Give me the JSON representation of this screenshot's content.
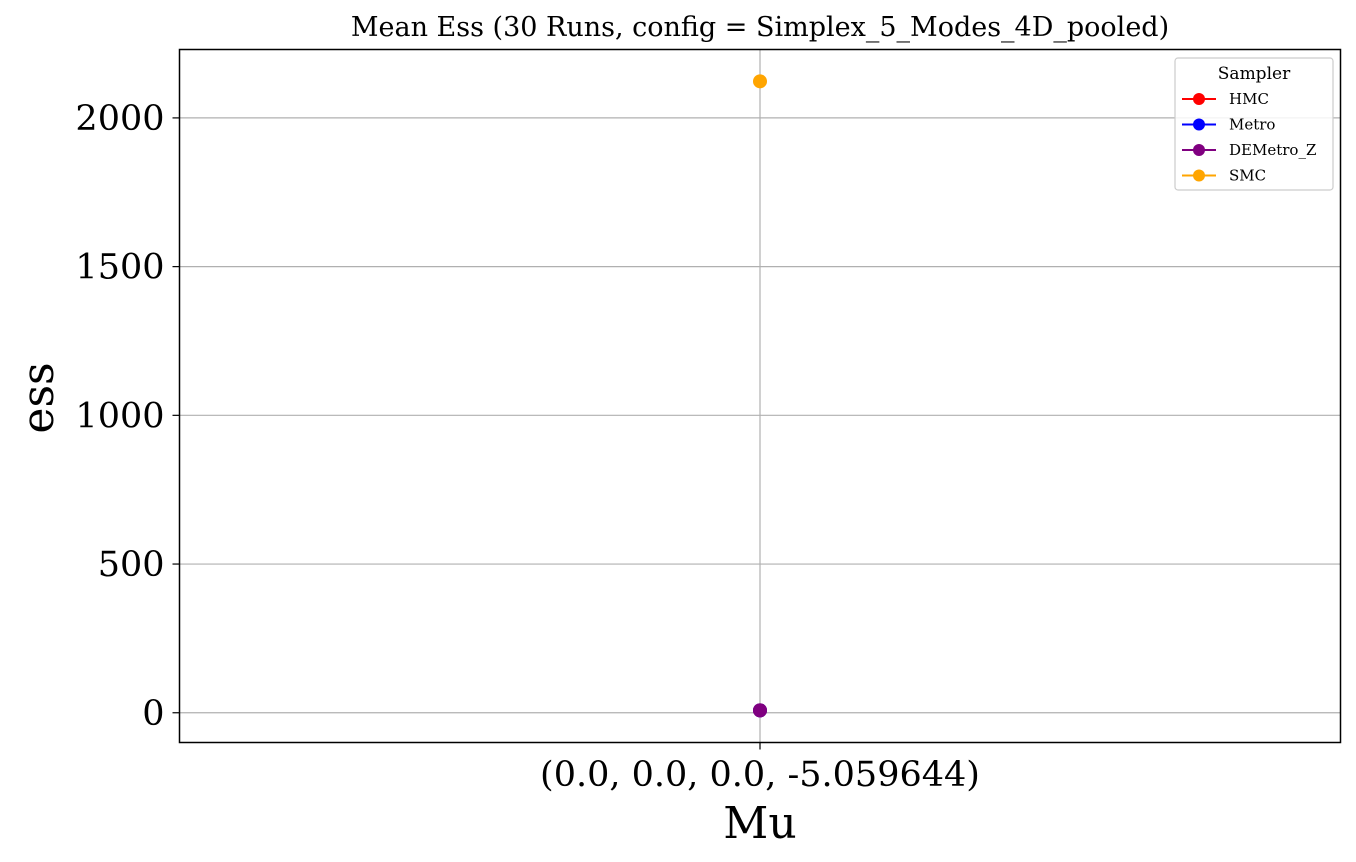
{
  "chart_data": {
    "type": "line",
    "title": "Mean Ess (30 Runs, config = Simplex_5_Modes_4D_pooled)",
    "xlabel": "Mu",
    "ylabel": "ess",
    "categories": [
      "(0.0, 0.0, 0.0, -5.059644)"
    ],
    "ylim": [
      -100,
      2230
    ],
    "yticks": [
      0,
      500,
      1000,
      1500,
      2000
    ],
    "grid": true,
    "legend": {
      "title": "Sampler",
      "placement": "top-right"
    },
    "series": [
      {
        "name": "HMC",
        "color": "#ff0000",
        "values": [
          8
        ]
      },
      {
        "name": "Metro",
        "color": "#0000ff",
        "values": [
          8
        ]
      },
      {
        "name": "DEMetro_Z",
        "color": "#800080",
        "values": [
          8
        ]
      },
      {
        "name": "SMC",
        "color": "#ffa500",
        "values": [
          2123
        ]
      }
    ]
  }
}
